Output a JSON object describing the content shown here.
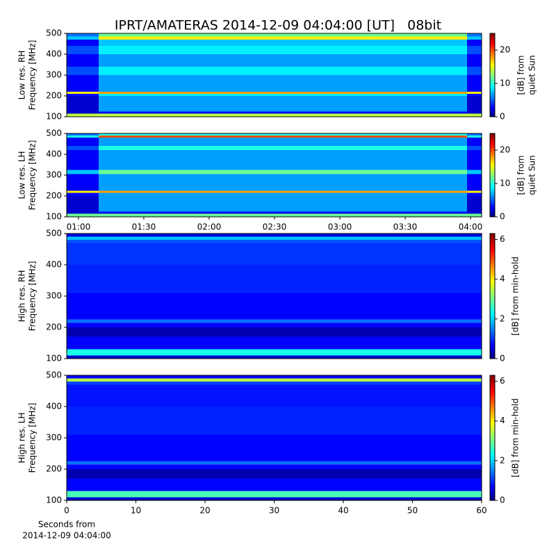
{
  "chart_data": [
    {
      "type": "heatmap",
      "title": "IPRT/AMATERAS 2014-12-09 04:04:00 [UT]   08bit",
      "ylabel": [
        "Low res. RH",
        "Frequency [MHz]"
      ],
      "xlim": [
        54.6,
        245.1
      ],
      "ylim": [
        100,
        500
      ],
      "yticks": [
        100,
        200,
        300,
        400,
        500
      ],
      "x_edges": [
        54.6,
        69.3,
        238.4,
        245.1
      ],
      "y_edges": [
        100,
        115,
        125,
        200,
        210,
        220,
        300,
        340,
        400,
        440,
        470,
        485,
        500
      ],
      "z": [
        [
          14,
          14,
          14
        ],
        [
          2,
          3,
          2
        ],
        [
          2,
          7,
          2
        ],
        [
          3,
          9,
          3
        ],
        [
          16,
          18,
          16
        ],
        [
          3,
          7,
          3
        ],
        [
          5,
          9,
          5
        ],
        [
          3,
          7,
          3
        ],
        [
          5,
          9,
          5
        ],
        [
          3,
          8,
          3
        ],
        [
          8,
          16,
          8
        ],
        [
          6,
          12,
          6
        ]
      ],
      "clim": [
        0,
        25
      ],
      "cticks": [
        0,
        10,
        20
      ],
      "colorbar_label": [
        "[dB] from",
        "quiet Sun"
      ]
    },
    {
      "type": "heatmap",
      "ylabel": [
        "Low res. LH",
        "Frequency [MHz]"
      ],
      "xlim": [
        54.6,
        245.1
      ],
      "ylim": [
        100,
        500
      ],
      "yticks": [
        100,
        200,
        300,
        400,
        500
      ],
      "xticks": [
        {
          "value": 60,
          "label": "01:00"
        },
        {
          "value": 90,
          "label": "01:30"
        },
        {
          "value": 120,
          "label": "02:00"
        },
        {
          "value": 150,
          "label": "02:30"
        },
        {
          "value": 180,
          "label": "03:00"
        },
        {
          "value": 210,
          "label": "03:30"
        },
        {
          "value": 240,
          "label": "04:00"
        }
      ],
      "x_edges": [
        54.6,
        69.3,
        238.4,
        245.1
      ],
      "y_edges": [
        100,
        115,
        125,
        200,
        215,
        225,
        305,
        325,
        400,
        420,
        440,
        480,
        490,
        500
      ],
      "z": [
        [
          12,
          12,
          12
        ],
        [
          2,
          3,
          2
        ],
        [
          2,
          7,
          2
        ],
        [
          3,
          7,
          3
        ],
        [
          16,
          18,
          16
        ],
        [
          3,
          7,
          3
        ],
        [
          8,
          12,
          8
        ],
        [
          3,
          7,
          3
        ],
        [
          3,
          7,
          3
        ],
        [
          5,
          10,
          5
        ],
        [
          3,
          7,
          3
        ],
        [
          10,
          20,
          10
        ],
        [
          6,
          10,
          6
        ]
      ],
      "clim": [
        0,
        25
      ],
      "cticks": [
        0,
        10,
        20
      ],
      "colorbar_label": [
        "[dB] from",
        "quiet Sun"
      ]
    },
    {
      "type": "heatmap",
      "ylabel": [
        "High res. RH",
        "Frequency [MHz]"
      ],
      "xlim": [
        0,
        60
      ],
      "ylim": [
        100,
        500
      ],
      "yticks": [
        100,
        200,
        300,
        400,
        500
      ],
      "x_edges": [
        0,
        60
      ],
      "y_edges": [
        100,
        110,
        130,
        170,
        200,
        215,
        225,
        310,
        400,
        470,
        480,
        490,
        500
      ],
      "z": [
        [
          0.5
        ],
        [
          2.5
        ],
        [
          0.8
        ],
        [
          0.3
        ],
        [
          0.8
        ],
        [
          1.5
        ],
        [
          0.8
        ],
        [
          1.0
        ],
        [
          1.1
        ],
        [
          1.3
        ],
        [
          2.0
        ],
        [
          0.6
        ]
      ],
      "clim": [
        0,
        6.3
      ],
      "cticks": [
        0,
        2,
        4,
        6
      ],
      "colorbar_label": [
        "[dB] from min-hold"
      ]
    },
    {
      "type": "heatmap",
      "ylabel": [
        "High res. LH",
        "Frequency [MHz]"
      ],
      "xlim": [
        0,
        60
      ],
      "ylim": [
        100,
        500
      ],
      "yticks": [
        100,
        200,
        300,
        400,
        500
      ],
      "xticks": [
        0,
        10,
        20,
        30,
        40,
        50,
        60
      ],
      "xlabel": [
        "Seconds from",
        "2014-12-09 04:04:00"
      ],
      "x_edges": [
        0,
        60
      ],
      "y_edges": [
        100,
        110,
        130,
        170,
        200,
        215,
        225,
        310,
        400,
        470,
        480,
        490,
        500
      ],
      "z": [
        [
          0.5
        ],
        [
          2.8
        ],
        [
          0.8
        ],
        [
          0.3
        ],
        [
          0.8
        ],
        [
          1.5
        ],
        [
          0.8
        ],
        [
          1.0
        ],
        [
          0.9
        ],
        [
          1.2
        ],
        [
          3.5
        ],
        [
          0.8
        ]
      ],
      "clim": [
        0,
        6.3
      ],
      "cticks": [
        0,
        2,
        4,
        6
      ],
      "colorbar_label": [
        "[dB] from min-hold"
      ]
    }
  ]
}
